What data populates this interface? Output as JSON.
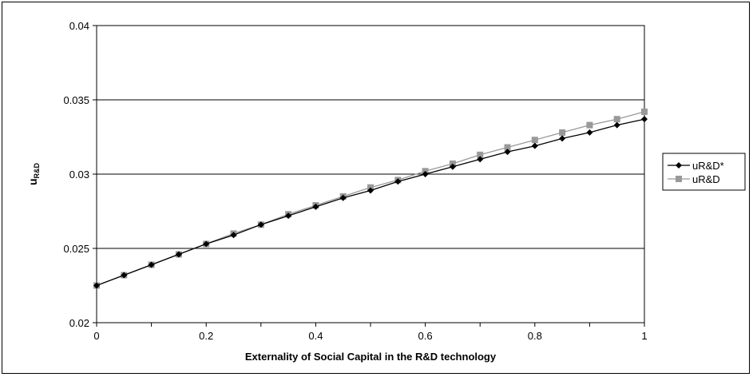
{
  "chart_data": {
    "type": "line",
    "title": "",
    "xlabel": "Externality of Social Capital in the R&D technology",
    "ylabel": {
      "main": "u",
      "sub": "R&D"
    },
    "xlim": [
      0,
      1
    ],
    "ylim": [
      0.02,
      0.04
    ],
    "x_ticks": [
      "0",
      "0.2",
      "0.4",
      "0.6",
      "0.8",
      "1"
    ],
    "y_ticks": [
      "0.02",
      "0.025",
      "0.03",
      "0.035",
      "0.04"
    ],
    "grid": "horizontal",
    "legend_position": "right",
    "x": [
      0,
      0.05,
      0.1,
      0.15,
      0.2,
      0.25,
      0.3,
      0.35,
      0.4,
      0.45,
      0.5,
      0.55,
      0.6,
      0.65,
      0.7,
      0.75,
      0.8,
      0.85,
      0.9,
      0.95,
      1
    ],
    "series": [
      {
        "name": "uR&D*",
        "color": "#000000",
        "marker": "diamond",
        "values": [
          0.0225,
          0.0232,
          0.0239,
          0.0246,
          0.0253,
          0.0259,
          0.0266,
          0.0272,
          0.0278,
          0.0284,
          0.0289,
          0.0295,
          0.03,
          0.0305,
          0.031,
          0.0315,
          0.0319,
          0.0324,
          0.0328,
          0.0333,
          0.0337
        ]
      },
      {
        "name": "uR&D",
        "color": "#999999",
        "marker": "square",
        "values": [
          0.0225,
          0.0232,
          0.0239,
          0.0246,
          0.0253,
          0.026,
          0.0266,
          0.0273,
          0.0279,
          0.0285,
          0.0291,
          0.0296,
          0.0302,
          0.0307,
          0.0313,
          0.0318,
          0.0323,
          0.0328,
          0.0333,
          0.0337,
          0.0342
        ]
      }
    ]
  }
}
